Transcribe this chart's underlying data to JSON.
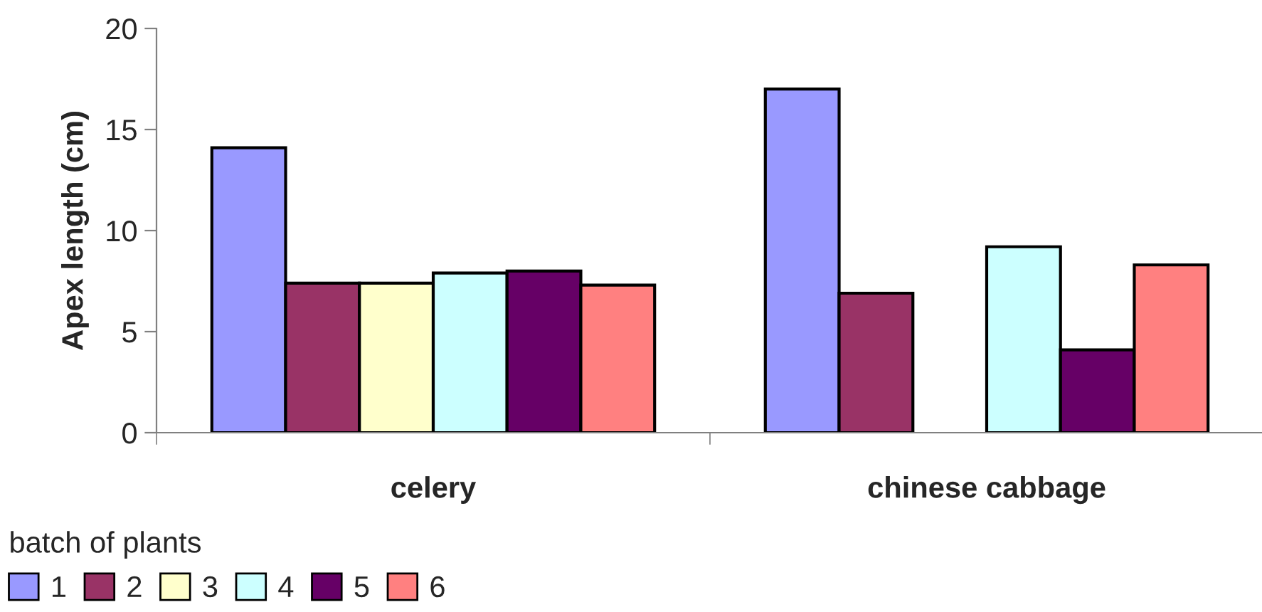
{
  "chart_data": {
    "type": "bar",
    "categories": [
      "celery",
      "chinese cabbage"
    ],
    "ylabel": "Apex length (cm)",
    "legend_title": "batch of plants",
    "series": [
      {
        "name": "1",
        "color": "#9999ff",
        "values": [
          14.1,
          17.0
        ]
      },
      {
        "name": "2",
        "color": "#993366",
        "values": [
          7.4,
          6.9
        ]
      },
      {
        "name": "3",
        "color": "#ffffcc",
        "values": [
          7.4,
          null
        ]
      },
      {
        "name": "4",
        "color": "#ccffff",
        "values": [
          7.9,
          9.2
        ]
      },
      {
        "name": "5",
        "color": "#660066",
        "values": [
          8.0,
          4.1
        ]
      },
      {
        "name": "6",
        "color": "#ff8080",
        "values": [
          7.3,
          8.3
        ]
      }
    ],
    "ylim": [
      0,
      20
    ],
    "yticks": [
      0,
      5,
      10,
      15,
      20
    ],
    "grid": false,
    "legend": "bottom left"
  }
}
